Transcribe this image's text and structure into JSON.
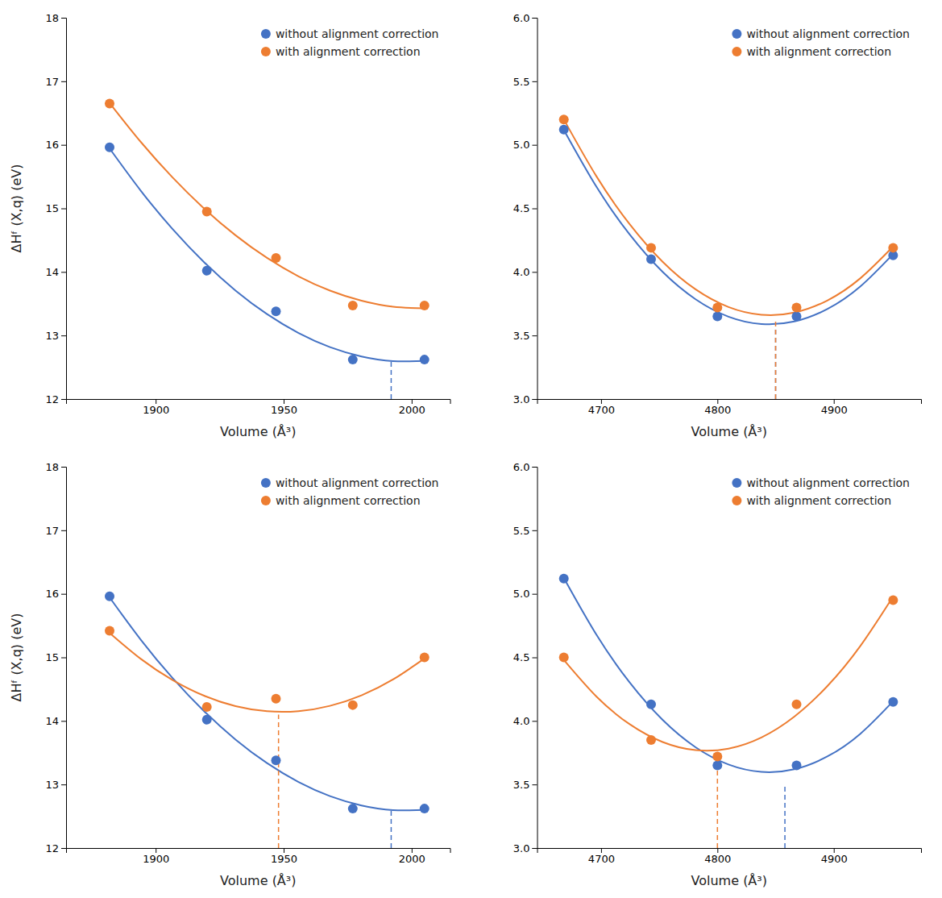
{
  "chart_data": [
    {
      "type": "scatter",
      "xlabel": "Volume (Å³)",
      "ylabel": "ΔHᶠ (X,q) (eV)",
      "xlim": [
        1865,
        2015
      ],
      "ylim": [
        12,
        18
      ],
      "xticks": [
        1900,
        1950,
        2000
      ],
      "yticks": [
        12,
        13,
        14,
        15,
        16,
        17,
        18
      ],
      "grid": false,
      "legend": "upper right",
      "series": [
        {
          "name": "without alignment correction",
          "color": "#4472C4",
          "marker": "circle",
          "x": [
            1882,
            1920,
            1947,
            1977,
            2005
          ],
          "values": [
            15.96,
            14.02,
            13.38,
            12.62,
            12.62
          ]
        },
        {
          "name": "with alignment correction",
          "color": "#ED7D31",
          "marker": "circle",
          "x": [
            1882,
            1920,
            1947,
            1977,
            2005
          ],
          "values": [
            16.65,
            14.95,
            14.22,
            13.47,
            13.47
          ]
        },
        {
          "type": "line",
          "color": "#4472C4",
          "line_style": "solid",
          "x": [
            1882,
            1894.3,
            1906.6,
            1918.9,
            1931.2,
            1943.5,
            1955.8,
            1968.1,
            1980.4,
            1992.7,
            2005
          ],
          "values": [
            15.943,
            15.272,
            14.675,
            14.154,
            13.707,
            13.336,
            13.039,
            12.817,
            12.67,
            12.597,
            12.6
          ]
        },
        {
          "type": "line",
          "color": "#ED7D31",
          "line_style": "solid",
          "x": [
            1882,
            1894.3,
            1906.6,
            1918.9,
            1931.2,
            1943.5,
            1955.8,
            1968.1,
            1980.4,
            1992.7,
            2005
          ],
          "values": [
            16.659,
            16.04,
            15.487,
            14.999,
            14.577,
            14.221,
            13.931,
            13.706,
            13.547,
            13.453,
            13.426
          ]
        },
        {
          "type": "line",
          "color": "#4472C4",
          "line_style": "dashed",
          "x": [
            1992,
            1992
          ],
          "values": [
            12,
            12.62
          ]
        },
        {
          "type": "line",
          "color": "#ED7D31",
          "line_style": "dashed",
          "x": [
            1992,
            1992
          ],
          "values": [
            13.47,
            13.47
          ]
        }
      ]
    },
    {
      "type": "scatter",
      "xlabel": "Volume (Å³)",
      "xlim": [
        4645,
        4975
      ],
      "ylim": [
        3,
        6
      ],
      "xticks": [
        4700,
        4800,
        4900
      ],
      "yticks": [
        {
          "value": 3,
          "label": "3.0"
        },
        3.5,
        {
          "value": 4,
          "label": "4.0"
        },
        4.5,
        {
          "value": 5,
          "label": "5.0"
        },
        5.5,
        {
          "value": 6,
          "label": "6.0"
        }
      ],
      "grid": false,
      "legend": "upper right",
      "series": [
        {
          "name": "without alignment correction",
          "color": "#4472C4",
          "marker": "circle",
          "x": [
            4668,
            4743,
            4800,
            4868,
            4951
          ],
          "values": [
            5.12,
            4.1,
            3.65,
            3.65,
            4.13
          ]
        },
        {
          "name": "with alignment correction",
          "color": "#ED7D31",
          "marker": "circle",
          "x": [
            4668,
            4743,
            4800,
            4868,
            4951
          ],
          "values": [
            5.2,
            4.19,
            3.72,
            3.72,
            4.19
          ]
        },
        {
          "type": "line",
          "color": "#4472C4",
          "line_style": "solid",
          "x": [
            4668,
            4696.3,
            4724.6,
            4752.9,
            4781.2,
            4809.5,
            4837.8,
            4866.1,
            4894.4,
            4922.7,
            4951
          ],
          "values": [
            5.117,
            4.666,
            4.294,
            4.0,
            3.785,
            3.648,
            3.59,
            3.61,
            3.708,
            3.885,
            4.141
          ]
        },
        {
          "type": "line",
          "color": "#ED7D31",
          "line_style": "solid",
          "x": [
            4668,
            4696.3,
            4724.6,
            4752.9,
            4781.2,
            4809.5,
            4837.8,
            4866.1,
            4894.4,
            4922.7,
            4951
          ],
          "values": [
            5.2,
            4.748,
            4.375,
            4.08,
            3.863,
            3.724,
            3.663,
            3.68,
            3.775,
            3.949,
            4.2
          ]
        },
        {
          "type": "line",
          "color": "#4472C4",
          "line_style": "dashed",
          "x": [
            4850,
            4850
          ],
          "values": [
            3,
            3.56
          ]
        },
        {
          "type": "line",
          "color": "#ED7D31",
          "line_style": "dashed",
          "x": [
            4850,
            4850
          ],
          "values": [
            3,
            3.62
          ]
        }
      ]
    },
    {
      "type": "scatter",
      "xlabel": "Volume (Å³)",
      "ylabel": "ΔHᶠ (X,q) (eV)",
      "xlim": [
        1865,
        2015
      ],
      "ylim": [
        12,
        18
      ],
      "xticks": [
        1900,
        1950,
        2000
      ],
      "yticks": [
        12,
        13,
        14,
        15,
        16,
        17,
        18
      ],
      "grid": false,
      "legend": "upper right",
      "series": [
        {
          "name": "without alignment correction",
          "color": "#4472C4",
          "marker": "circle",
          "x": [
            1882,
            1920,
            1947,
            1977,
            2005
          ],
          "values": [
            15.96,
            14.02,
            13.38,
            12.62,
            12.62
          ]
        },
        {
          "name": "with alignment correction",
          "color": "#ED7D31",
          "marker": "circle",
          "x": [
            1882,
            1920,
            1947,
            1977,
            2005
          ],
          "values": [
            15.42,
            14.22,
            14.35,
            14.25,
            15.0
          ]
        },
        {
          "type": "line",
          "color": "#4472C4",
          "line_style": "solid",
          "x": [
            1882,
            1894.3,
            1906.6,
            1918.9,
            1931.2,
            1943.5,
            1955.8,
            1968.1,
            1980.4,
            1992.7,
            2005
          ],
          "values": [
            15.943,
            15.272,
            14.675,
            14.154,
            13.707,
            13.336,
            13.039,
            12.817,
            12.67,
            12.597,
            12.6
          ]
        },
        {
          "type": "line",
          "color": "#ED7D31",
          "line_style": "solid",
          "x": [
            1882,
            1894.3,
            1906.6,
            1918.9,
            1931.2,
            1943.5,
            1955.8,
            1968.1,
            1980.4,
            1992.7,
            2005
          ],
          "values": [
            15.385,
            14.973,
            14.644,
            14.397,
            14.233,
            14.152,
            14.153,
            14.237,
            14.403,
            14.652,
            14.983
          ]
        },
        {
          "type": "line",
          "color": "#ED7D31",
          "line_style": "dashed",
          "x": [
            1948,
            1948
          ],
          "values": [
            12,
            14.1
          ]
        },
        {
          "type": "line",
          "color": "#4472C4",
          "line_style": "dashed",
          "x": [
            1992,
            1992
          ],
          "values": [
            12,
            12.62
          ]
        }
      ]
    },
    {
      "type": "scatter",
      "xlabel": "Volume (Å³)",
      "xlim": [
        4645,
        4975
      ],
      "ylim": [
        3,
        6
      ],
      "xticks": [
        4700,
        4800,
        4900
      ],
      "yticks": [
        {
          "value": 3,
          "label": "3.0"
        },
        3.5,
        {
          "value": 4,
          "label": "4.0"
        },
        4.5,
        {
          "value": 5,
          "label": "5.0"
        },
        5.5,
        {
          "value": 6,
          "label": "6.0"
        }
      ],
      "grid": false,
      "legend": "upper right",
      "series": [
        {
          "name": "without alignment correction",
          "color": "#4472C4",
          "marker": "circle",
          "x": [
            4668,
            4743,
            4800,
            4868,
            4951
          ],
          "values": [
            5.12,
            4.13,
            3.65,
            3.65,
            4.15
          ]
        },
        {
          "name": "with alignment correction",
          "color": "#ED7D31",
          "marker": "circle",
          "x": [
            4668,
            4743,
            4800,
            4868,
            4951
          ],
          "values": [
            4.5,
            3.85,
            3.72,
            4.13,
            4.95
          ]
        },
        {
          "type": "line",
          "color": "#4472C4",
          "line_style": "solid",
          "x": [
            4668,
            4696.3,
            4724.6,
            4752.9,
            4781.2,
            4809.5,
            4837.8,
            4866.1,
            4894.4,
            4922.7,
            4951
          ],
          "values": [
            5.125,
            4.674,
            4.302,
            4.008,
            3.793,
            3.657,
            3.599,
            3.62,
            3.72,
            3.898,
            4.155
          ]
        },
        {
          "type": "line",
          "color": "#ED7D31",
          "line_style": "solid",
          "x": [
            4668,
            4696.3,
            4724.6,
            4752.9,
            4781.2,
            4809.5,
            4837.8,
            4866.1,
            4894.4,
            4922.7,
            4951
          ],
          "values": [
            4.48,
            4.189,
            3.974,
            3.834,
            3.77,
            3.782,
            3.87,
            4.034,
            4.273,
            4.588,
            4.979
          ]
        },
        {
          "type": "line",
          "color": "#ED7D31",
          "line_style": "dashed",
          "x": [
            4800,
            4800
          ],
          "values": [
            3,
            3.72
          ]
        },
        {
          "type": "line",
          "color": "#4472C4",
          "line_style": "dashed",
          "x": [
            4858,
            4858
          ],
          "values": [
            3,
            3.5
          ]
        }
      ]
    }
  ]
}
